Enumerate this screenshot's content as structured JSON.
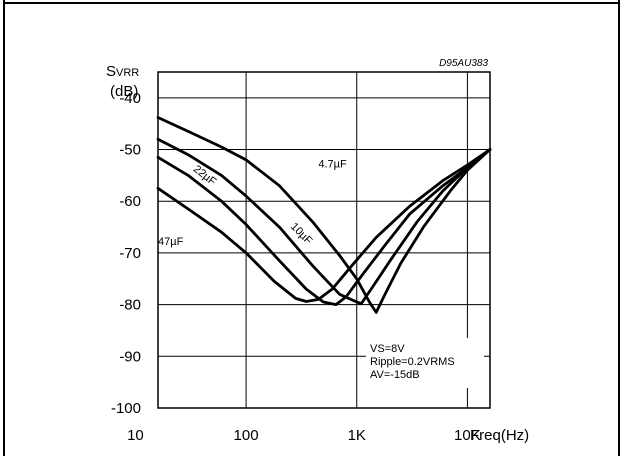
{
  "chart_data": {
    "type": "line",
    "title": "",
    "figure_code": "D95AU383",
    "ylabel_main": "S",
    "ylabel_sub": "VRR",
    "ylabel_unit": "(dB)",
    "xlabel": "Freq(Hz)",
    "xscale": "log",
    "xlim": [
      16,
      16000
    ],
    "ylim": [
      -100,
      -35
    ],
    "x_ticks": [
      {
        "value": 10,
        "label": "10"
      },
      {
        "value": 100,
        "label": "100"
      },
      {
        "value": 1000,
        "label": "1K"
      },
      {
        "value": 10000,
        "label": "10K"
      }
    ],
    "y_ticks": [
      {
        "value": -40,
        "label": "-40"
      },
      {
        "value": -50,
        "label": "-50"
      },
      {
        "value": -60,
        "label": "-60"
      },
      {
        "value": -70,
        "label": "-70"
      },
      {
        "value": -80,
        "label": "-80"
      },
      {
        "value": -90,
        "label": "-90"
      },
      {
        "value": -100,
        "label": "-100"
      }
    ],
    "grid": true,
    "conditions": [
      "VS=8V",
      "Ripple=0.2VRMS",
      "AV=-15dB"
    ],
    "series": [
      {
        "name": "4.7µF",
        "points": [
          [
            16,
            -43.8
          ],
          [
            30,
            -46.5
          ],
          [
            60,
            -49.5
          ],
          [
            100,
            -52
          ],
          [
            200,
            -57
          ],
          [
            400,
            -64
          ],
          [
            700,
            -70.5
          ],
          [
            1000,
            -75
          ],
          [
            1300,
            -79.5
          ],
          [
            1500,
            -81.5
          ],
          [
            1800,
            -78
          ],
          [
            2500,
            -72
          ],
          [
            4000,
            -65
          ],
          [
            7000,
            -58
          ],
          [
            10000,
            -54
          ],
          [
            16000,
            -50
          ]
        ]
      },
      {
        "name": "10µF",
        "points": [
          [
            16,
            -48
          ],
          [
            30,
            -51
          ],
          [
            60,
            -55
          ],
          [
            100,
            -59
          ],
          [
            200,
            -65
          ],
          [
            400,
            -72.5
          ],
          [
            700,
            -78
          ],
          [
            1000,
            -79.5
          ],
          [
            1100,
            -79.8
          ],
          [
            1400,
            -76.5
          ],
          [
            2000,
            -71.5
          ],
          [
            3500,
            -64
          ],
          [
            6000,
            -58
          ],
          [
            10000,
            -53.5
          ],
          [
            16000,
            -50
          ]
        ]
      },
      {
        "name": "22µF",
        "points": [
          [
            16,
            -51.5
          ],
          [
            30,
            -55
          ],
          [
            60,
            -60
          ],
          [
            100,
            -64.5
          ],
          [
            200,
            -71.5
          ],
          [
            350,
            -77
          ],
          [
            500,
            -79.5
          ],
          [
            650,
            -80
          ],
          [
            800,
            -78.5
          ],
          [
            1100,
            -74.5
          ],
          [
            1800,
            -68.5
          ],
          [
            3000,
            -62.5
          ],
          [
            6000,
            -57
          ],
          [
            10000,
            -53.5
          ],
          [
            16000,
            -50
          ]
        ]
      },
      {
        "name": "47µF",
        "points": [
          [
            16,
            -57.5
          ],
          [
            30,
            -61.5
          ],
          [
            60,
            -66
          ],
          [
            100,
            -70
          ],
          [
            180,
            -75.5
          ],
          [
            280,
            -78.8
          ],
          [
            350,
            -79.4
          ],
          [
            450,
            -79
          ],
          [
            600,
            -77
          ],
          [
            900,
            -72.5
          ],
          [
            1500,
            -67
          ],
          [
            3000,
            -61
          ],
          [
            6000,
            -56
          ],
          [
            10000,
            -53
          ],
          [
            16000,
            -50
          ]
        ]
      }
    ],
    "curve_labels": [
      {
        "series": "4.7µF",
        "text": "4.7µF",
        "x": 450,
        "y": -53.5,
        "angle": 0
      },
      {
        "series": "10µF",
        "text": "10µF",
        "x": 250,
        "y": -65,
        "angle": 45
      },
      {
        "series": "22µF",
        "text": "22µF",
        "x": 33,
        "y": -54,
        "angle": 38
      },
      {
        "series": "47µF",
        "text": "47µF",
        "x": 16,
        "y": -68.5,
        "angle": 0
      }
    ]
  }
}
